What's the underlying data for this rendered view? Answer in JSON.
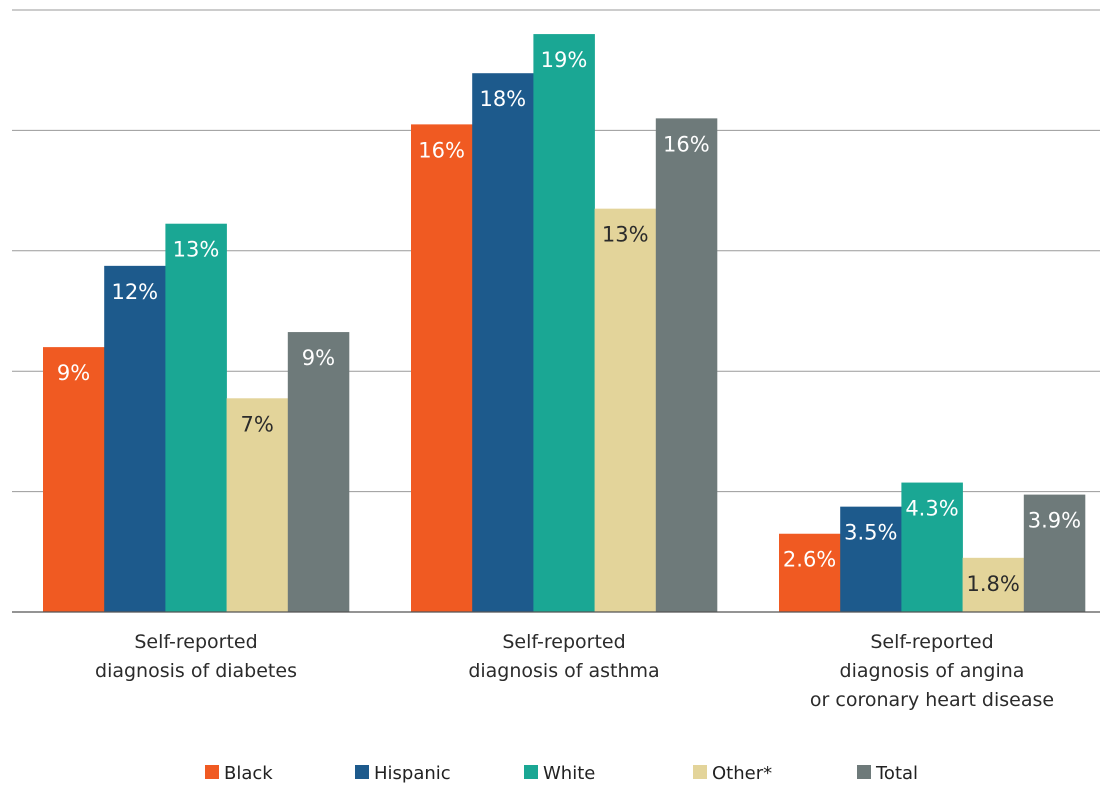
{
  "chart_data": {
    "type": "bar",
    "title": "",
    "xlabel": "",
    "ylabel": "",
    "ylim": [
      0,
      20
    ],
    "grid": true,
    "legend_position": "bottom",
    "categories": [
      [
        "Self-reported",
        "diagnosis of diabetes"
      ],
      [
        "Self-reported",
        "diagnosis of asthma"
      ],
      [
        "Self-reported",
        "diagnosis of angina",
        "or coronary heart disease"
      ]
    ],
    "series": [
      {
        "name": "Black",
        "color": "#f05a22",
        "label_color": "#ffffff",
        "values": [
          8.8,
          16.2,
          2.6
        ],
        "labels": [
          "9%",
          "16%",
          "2.6%"
        ]
      },
      {
        "name": "Hispanic",
        "color": "#1d5a8c",
        "label_color": "#ffffff",
        "values": [
          11.5,
          17.9,
          3.5
        ],
        "labels": [
          "12%",
          "18%",
          "3.5%"
        ]
      },
      {
        "name": "White",
        "color": "#1aa794",
        "label_color": "#ffffff",
        "values": [
          12.9,
          19.2,
          4.3
        ],
        "labels": [
          "13%",
          "19%",
          "4.3%"
        ]
      },
      {
        "name": "Other*",
        "color": "#e3d49a",
        "label_color": "#2b2b2b",
        "values": [
          7.1,
          13.4,
          1.8
        ],
        "labels": [
          "7%",
          "13%",
          "1.8%"
        ]
      },
      {
        "name": "Total",
        "color": "#6e7a7a",
        "label_color": "#ffffff",
        "values": [
          9.3,
          16.4,
          3.9
        ],
        "labels": [
          "9%",
          "16%",
          "3.9%"
        ]
      }
    ]
  }
}
